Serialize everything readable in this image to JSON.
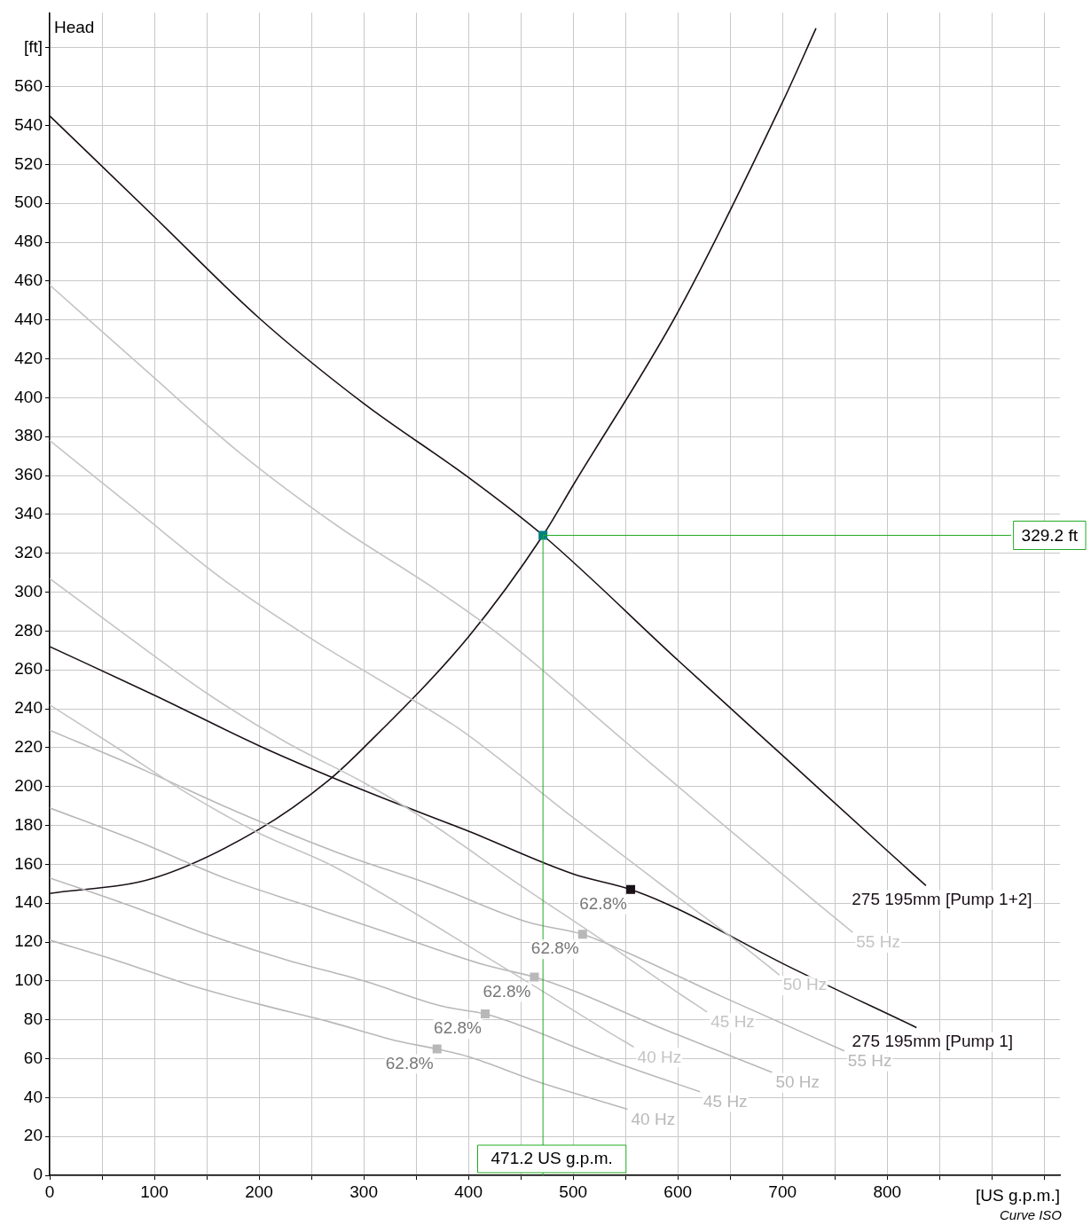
{
  "chart_data": {
    "type": "line",
    "ylabel": "Head",
    "xlabel": "[US g.p.m.]",
    "xlim": [
      0,
      965
    ],
    "ylim": [
      0,
      598
    ],
    "xticks": [
      0,
      {
        "value": 50,
        "label": null
      },
      100,
      {
        "value": 150,
        "label": null
      },
      200,
      {
        "value": 250,
        "label": null
      },
      300,
      {
        "value": 350,
        "label": null
      },
      400,
      {
        "value": 450,
        "label": null
      },
      500,
      {
        "value": 550,
        "label": null
      },
      600,
      {
        "value": 650,
        "label": null
      },
      700,
      {
        "value": 750,
        "label": null
      },
      800,
      {
        "value": 850,
        "label": null
      },
      {
        "value": 900,
        "label": null
      },
      {
        "value": 950,
        "label": null
      }
    ],
    "yticks": [
      0,
      20,
      40,
      60,
      80,
      100,
      120,
      140,
      160,
      180,
      200,
      220,
      240,
      260,
      280,
      300,
      320,
      340,
      360,
      380,
      400,
      420,
      440,
      460,
      480,
      500,
      520,
      540,
      560,
      {
        "value": 580,
        "label": "[ft]"
      }
    ],
    "grid": true,
    "legend": false,
    "marker": "none",
    "series": [
      {
        "color": "#c4c4c4",
        "x": [
          0,
          92,
          183,
          275,
          367,
          432,
          550,
          642,
          733,
          767
        ],
        "values": [
          458,
          414,
          371,
          334,
          302,
          277,
          223,
          181,
          140,
          125
        ],
        "name": "55 Hz"
      },
      {
        "color": "#c4c4c4",
        "x": [
          0,
          83,
          167,
          250,
          333,
          393,
          500,
          583,
          667,
          697
        ],
        "values": [
          378,
          342,
          306,
          276,
          249,
          229,
          184,
          150,
          116,
          103
        ],
        "name": "50 Hz"
      },
      {
        "color": "#c4c4c4",
        "x": [
          0,
          75,
          150,
          225,
          300,
          353,
          450,
          525,
          600,
          628
        ],
        "values": [
          307,
          277,
          248,
          223,
          202,
          185,
          149,
          122,
          94,
          84
        ],
        "name": "45 Hz"
      },
      {
        "color": "#c4c4c4",
        "x": [
          0,
          67,
          133,
          200,
          267,
          314,
          400,
          467,
          533,
          558
        ],
        "values": [
          242,
          219,
          196,
          176,
          160,
          146,
          118,
          96,
          74,
          66
        ],
        "name": "40 Hz"
      },
      {
        "color": "#b8b8b8",
        "x": [
          0,
          92,
          183,
          275,
          367,
          458,
          509,
          550,
          642,
          759
        ],
        "values": [
          229,
          208,
          186,
          166,
          149,
          130,
          124,
          115,
          92,
          64
        ],
        "name": "55 Hz"
      },
      {
        "color": "#b8b8b8",
        "x": [
          0,
          83,
          167,
          250,
          333,
          417,
          463,
          500,
          583,
          690
        ],
        "values": [
          189,
          172,
          153,
          138,
          123,
          108,
          102,
          95,
          76,
          53
        ],
        "name": "50 Hz"
      },
      {
        "color": "#b8b8b8",
        "x": [
          0,
          75,
          150,
          225,
          300,
          375,
          416,
          450,
          525,
          621
        ],
        "values": [
          153,
          139,
          124,
          111,
          100,
          87,
          83,
          77,
          61,
          43
        ],
        "name": "45 Hz"
      },
      {
        "color": "#b8b8b8",
        "x": [
          0,
          67,
          133,
          200,
          267,
          333,
          370,
          400,
          467,
          552
        ],
        "values": [
          121,
          110,
          98,
          88,
          79,
          69,
          65,
          61,
          48,
          34
        ],
        "name": "40 Hz"
      },
      {
        "color": "#1a1018",
        "x": [
          0,
          100,
          200,
          300,
          400,
          471.2,
          600,
          700,
          800,
          837
        ],
        "values": [
          545,
          493,
          441,
          397,
          359,
          329.2,
          265,
          216,
          167,
          149
        ],
        "name": "275 195mm [Pump 1+2]"
      },
      {
        "color": "#1a1018",
        "x": [
          0,
          100,
          200,
          300,
          400,
          500,
          555,
          600,
          700,
          828
        ],
        "values": [
          272,
          247,
          221,
          198,
          177,
          155,
          147,
          137,
          109,
          76
        ],
        "name": "275 195mm [Pump 1]"
      },
      {
        "color": "#1a1018",
        "x": [
          0,
          100,
          200,
          266,
          300,
          400,
          471.2,
          500,
          600,
          700,
          732
        ],
        "values": [
          145,
          153,
          178,
          203,
          220,
          277,
          329.2,
          355,
          444,
          552,
          590
        ]
      },
      {
        "type": "scatter",
        "marker": "square",
        "color": "#b8b8b8",
        "x": [
          509,
          463,
          416,
          370
        ],
        "values": [
          124,
          102,
          83,
          65
        ]
      },
      {
        "type": "scatter",
        "marker": "square",
        "color": "#1a1018",
        "x": [
          555
        ],
        "values": [
          147
        ]
      },
      {
        "type": "scatter",
        "marker": "square",
        "color": "#008080",
        "x": [
          471.2
        ],
        "values": [
          329.2
        ]
      }
    ],
    "ref_lines": [
      {
        "axis": "x",
        "value": 471.2,
        "label": "471.2 US g.p.m.",
        "color": "#22aa22"
      },
      {
        "axis": "y",
        "value": 329.2,
        "label": "329.2 ft",
        "color": "#22aa22"
      }
    ],
    "annotations": [
      {
        "text": "62.8%",
        "x": 555,
        "y": 147
      },
      {
        "text": "62.8%",
        "x": 509,
        "y": 124
      },
      {
        "text": "62.8%",
        "x": 463,
        "y": 102
      },
      {
        "text": "62.8%",
        "x": 416,
        "y": 83
      },
      {
        "text": "62.8%",
        "x": 370,
        "y": 65
      },
      "Curve ISO"
    ]
  }
}
